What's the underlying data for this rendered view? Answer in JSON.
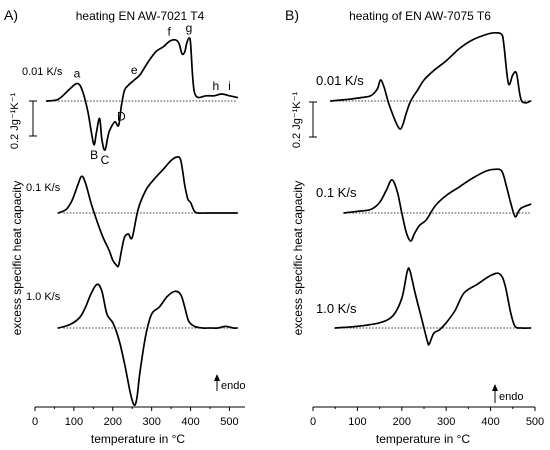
{
  "chart_data": [
    {
      "type": "line",
      "panel_label": "A)",
      "title": "heating EN AW-7021 T4",
      "xlabel": "temperature in °C",
      "ylabel": "excess specific heat capacity",
      "xlim": [
        0,
        540
      ],
      "xticks": [
        "0",
        "100",
        "200",
        "300",
        "400",
        "500"
      ],
      "scale_bar_label": "0.2 Jg⁻¹K⁻¹",
      "endo_label": "endo",
      "series": [
        {
          "name": "0.01 K/s",
          "x": [
            30,
            60,
            90,
            108,
            120,
            135,
            145,
            152,
            158,
            166,
            172,
            180,
            190,
            205,
            215,
            222,
            230,
            240,
            255,
            270,
            290,
            310,
            330,
            345,
            360,
            370,
            378,
            385,
            390,
            396,
            400,
            405,
            410,
            420,
            440,
            460,
            480,
            500,
            520
          ],
          "y": [
            0.0,
            0.01,
            0.07,
            0.1,
            0.07,
            -0.05,
            -0.18,
            -0.25,
            -0.18,
            -0.1,
            -0.22,
            -0.28,
            -0.18,
            -0.12,
            -0.14,
            -0.03,
            0.06,
            0.09,
            0.12,
            0.15,
            0.22,
            0.28,
            0.31,
            0.34,
            0.35,
            0.33,
            0.27,
            0.28,
            0.33,
            0.36,
            0.33,
            0.15,
            0.05,
            0.02,
            0.03,
            0.03,
            0.04,
            0.03,
            0.02
          ],
          "annotations": [
            {
              "label": "a",
              "x": 108
            },
            {
              "label": "B",
              "x": 152
            },
            {
              "label": "C",
              "x": 180
            },
            {
              "label": "D",
              "x": 222
            },
            {
              "label": "e",
              "x": 255
            },
            {
              "label": "f",
              "x": 345
            },
            {
              "label": "g",
              "x": 396
            },
            {
              "label": "h",
              "x": 465
            },
            {
              "label": "i",
              "x": 500
            }
          ]
        },
        {
          "name": "0.1 K/s",
          "x": [
            60,
            80,
            95,
            110,
            120,
            130,
            145,
            160,
            175,
            190,
            200,
            210,
            215,
            222,
            230,
            240,
            250,
            265,
            285,
            305,
            330,
            350,
            365,
            375,
            385,
            393,
            400,
            410,
            420,
            440,
            460,
            480,
            500,
            520
          ],
          "y": [
            0.0,
            0.02,
            0.07,
            0.16,
            0.21,
            0.17,
            0.05,
            -0.05,
            -0.14,
            -0.21,
            -0.27,
            -0.3,
            -0.3,
            -0.22,
            -0.14,
            -0.12,
            -0.14,
            0.02,
            0.13,
            0.19,
            0.25,
            0.3,
            0.32,
            0.3,
            0.16,
            0.08,
            0.06,
            0.01,
            0.0,
            0.0,
            0.0,
            0.0,
            0.0,
            0.0
          ]
        },
        {
          "name": "1.0 K/s",
          "x": [
            60,
            90,
            115,
            130,
            145,
            160,
            172,
            185,
            200,
            215,
            230,
            245,
            255,
            262,
            270,
            285,
            300,
            320,
            340,
            360,
            375,
            385,
            395,
            410,
            430,
            450,
            470,
            490,
            510,
            520
          ],
          "y": [
            0.0,
            0.02,
            0.06,
            0.12,
            0.2,
            0.25,
            0.21,
            0.08,
            0.03,
            -0.06,
            -0.2,
            -0.37,
            -0.44,
            -0.4,
            -0.25,
            -0.04,
            0.08,
            0.12,
            0.18,
            0.21,
            0.19,
            0.12,
            0.04,
            0.01,
            0.0,
            0.0,
            0.0,
            0.01,
            0.0,
            0.0
          ]
        }
      ]
    },
    {
      "type": "line",
      "panel_label": "B)",
      "title": "heating of EN AW-7075 T6",
      "xlabel": "temperature in °C",
      "ylabel": "excess specific heat capacity",
      "xlim": [
        0,
        500
      ],
      "xticks": [
        "0",
        "100",
        "200",
        "300",
        "400",
        "500"
      ],
      "scale_bar_label": "0.2 Jg⁻¹K⁻¹",
      "endo_label": "endo",
      "series": [
        {
          "name": "0.01 K/s",
          "x": [
            40,
            80,
            110,
            130,
            145,
            152,
            160,
            170,
            180,
            190,
            197,
            203,
            210,
            220,
            235,
            250,
            270,
            300,
            330,
            360,
            390,
            410,
            425,
            430,
            440,
            450,
            458,
            465,
            470,
            480,
            490
          ],
          "y": [
            0.0,
            0.01,
            0.02,
            0.03,
            0.07,
            0.12,
            0.08,
            -0.01,
            -0.08,
            -0.14,
            -0.16,
            -0.13,
            -0.07,
            0.0,
            0.06,
            0.12,
            0.17,
            0.23,
            0.3,
            0.35,
            0.38,
            0.39,
            0.38,
            0.32,
            0.1,
            0.15,
            0.16,
            0.05,
            0.0,
            -0.01,
            0.0
          ]
        },
        {
          "name": "0.1 K/s",
          "x": [
            70,
            100,
            130,
            150,
            165,
            178,
            190,
            200,
            210,
            220,
            228,
            240,
            255,
            275,
            300,
            330,
            360,
            390,
            410,
            425,
            435,
            445,
            455,
            463,
            470,
            490
          ],
          "y": [
            0.0,
            0.01,
            0.02,
            0.06,
            0.13,
            0.19,
            0.12,
            0.0,
            -0.11,
            -0.16,
            -0.12,
            -0.07,
            -0.04,
            0.04,
            0.1,
            0.15,
            0.2,
            0.24,
            0.25,
            0.24,
            0.16,
            0.06,
            -0.02,
            0.01,
            0.03,
            0.05
          ]
        },
        {
          "name": "1.0 K/s",
          "x": [
            50,
            100,
            150,
            180,
            200,
            212,
            218,
            230,
            245,
            258,
            262,
            272,
            285,
            300,
            320,
            340,
            370,
            400,
            420,
            432,
            445,
            455,
            470,
            490
          ],
          "y": [
            0.0,
            0.01,
            0.03,
            0.07,
            0.17,
            0.32,
            0.33,
            0.2,
            0.05,
            -0.08,
            -0.09,
            -0.03,
            -0.01,
            0.03,
            0.1,
            0.2,
            0.25,
            0.3,
            0.31,
            0.25,
            0.09,
            0.01,
            0.0,
            0.0
          ]
        }
      ]
    }
  ]
}
